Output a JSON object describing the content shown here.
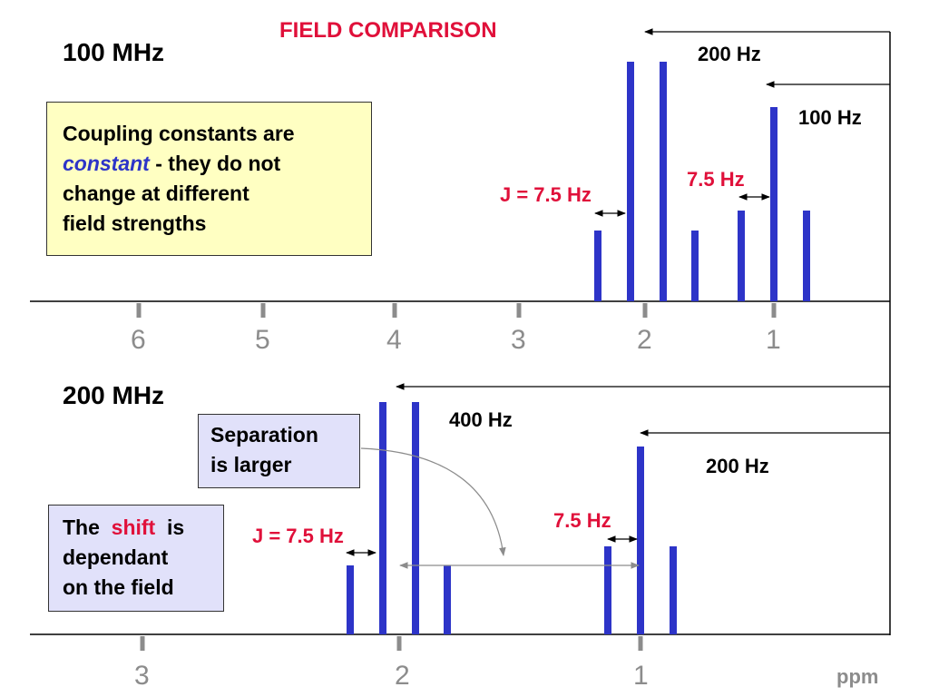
{
  "title": "FIELD COMPARISON",
  "colors": {
    "accent_red": "#e0103a",
    "peak_blue": "#2d34c8",
    "axis_grey": "#8c8c8c",
    "yellow_box": "#ffffc2",
    "lavender_box": "#e1e1fa"
  },
  "top_panel": {
    "field_label": "100 MHz",
    "offset_label_1": "200 Hz",
    "offset_label_2": "100 Hz",
    "j_label_left": "J = 7.5 Hz",
    "j_label_right": "7.5 Hz",
    "axis_ticks": [
      "6",
      "5",
      "4",
      "3",
      "2",
      "1"
    ],
    "note": {
      "line1": "Coupling constants are",
      "line2_em": "constant",
      "line2_rest": " - they do not",
      "line3": "change at different",
      "line4": "field strengths"
    }
  },
  "bottom_panel": {
    "field_label": "200 MHz",
    "offset_label_1": "400 Hz",
    "offset_label_2": "200 Hz",
    "j_label_left": "J = 7.5 Hz",
    "j_label_right": "7.5 Hz",
    "axis_ticks": [
      "3",
      "2",
      "1"
    ],
    "axis_unit": "ppm",
    "separation_note": {
      "line1": "Separation",
      "line2": "is larger"
    },
    "shift_note": {
      "word1": "The",
      "word_shift": "shift",
      "word3": "is",
      "line2": "dependant",
      "line3": "on the field"
    }
  }
}
